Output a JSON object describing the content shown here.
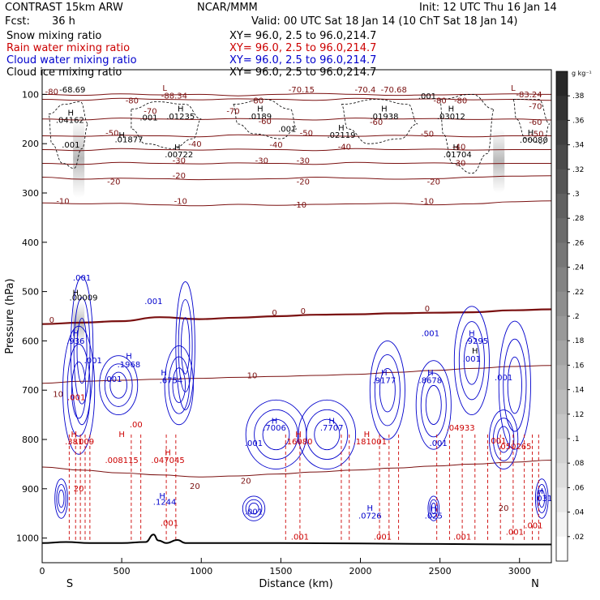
{
  "header": {
    "model": "CONTRAST 15km ARW",
    "org": "NCAR/MMM",
    "init": "Init: 12 UTC Thu 16 Jan 14",
    "fcst_label": "Fcst:",
    "fcst_value": "36 h",
    "valid": "Valid: 00 UTC Sat 18 Jan 14 (10 ChT Sat 18 Jan 14)"
  },
  "legend": [
    {
      "name": "Snow mixing ratio",
      "color": "#000000",
      "xy": "XY=  96.0,  2.5 to  96.0,214.7"
    },
    {
      "name": "Rain water mixing ratio",
      "color": "#cc0000",
      "xy": "XY=  96.0,  2.5 to  96.0,214.7"
    },
    {
      "name": "Cloud water mixing ratio",
      "color": "#0000cc",
      "xy": "XY=  96.0,  2.5 to  96.0,214.7"
    },
    {
      "name": "Cloud ice mixing ratio",
      "color": "#000000",
      "xy": "XY=  96.0,  2.5 to  96.0,214.7"
    }
  ],
  "colorbar": {
    "unit": "g kg⁻¹",
    "labels": [
      ".38",
      ".36",
      ".34",
      ".32",
      ".3",
      ".28",
      ".26",
      ".24",
      ".22",
      ".2",
      ".18",
      ".16",
      ".14",
      ".12",
      ".1",
      ".08",
      ".06",
      ".04",
      ".02"
    ]
  },
  "axis_end_labels": {
    "left": "S",
    "right": "N"
  },
  "colors": {
    "temp": "#7a1010",
    "rain": "#cc0000",
    "cloud": "#0000cc",
    "snow": "#000000",
    "terrain": "#000000"
  },
  "chart_data": {
    "type": "cross-section",
    "xlabel": "Distance (km)",
    "ylabel": "Pressure (hPa)",
    "xlim": [
      0,
      3200
    ],
    "ylim": [
      1050,
      50
    ],
    "xticks": [
      0,
      500,
      1000,
      1500,
      2000,
      2500,
      3000
    ],
    "yticks": [
      100,
      200,
      300,
      400,
      500,
      600,
      700,
      800,
      900,
      1000
    ],
    "temperature_contours": [
      {
        "label": "-80",
        "p": [
          100,
          102,
          99,
          101,
          100,
          103,
          100,
          98,
          100,
          102,
          101,
          100,
          99,
          100
        ]
      },
      {
        "label": "-70",
        "p": [
          110,
          112,
          108,
          110,
          111,
          109,
          110,
          112,
          108,
          110,
          109,
          111,
          110,
          112
        ]
      },
      {
        "label": "-60",
        "p": [
          150,
          152,
          148,
          150,
          151,
          149,
          150,
          152,
          148,
          150,
          149,
          151,
          150,
          152
        ]
      },
      {
        "label": "-50",
        "p": [
          184,
          185,
          183,
          184,
          186,
          182,
          183,
          184,
          185,
          183,
          184,
          186,
          184,
          184
        ]
      },
      {
        "label": "-40",
        "p": [
          212,
          214,
          210,
          212,
          213,
          211,
          212,
          214,
          210,
          212,
          211,
          213,
          212,
          212
        ]
      },
      {
        "label": "-30",
        "p": [
          240,
          242,
          238,
          240,
          241,
          239,
          240,
          242,
          238,
          240,
          239,
          241,
          240,
          240
        ]
      },
      {
        "label": "-20",
        "p": [
          268,
          272,
          270,
          271,
          273,
          272,
          271,
          268,
          270,
          272,
          271,
          268,
          266,
          265
        ]
      },
      {
        "label": "-10",
        "p": [
          320,
          322,
          321,
          324,
          326,
          323,
          325,
          323,
          322,
          321,
          324,
          322,
          318,
          316
        ]
      },
      {
        "label": "0",
        "p": [
          566,
          563,
          560,
          552,
          556,
          553,
          550,
          547,
          546,
          544,
          543,
          542,
          538,
          536
        ]
      },
      {
        "label": "10",
        "p": [
          686,
          682,
          680,
          678,
          676,
          674,
          672,
          670,
          668,
          664,
          660,
          656,
          652,
          650
        ]
      },
      {
        "label": "20",
        "p": [
          856,
          862,
          868,
          872,
          876,
          874,
          870,
          866,
          862,
          858,
          854,
          850,
          846,
          842
        ]
      }
    ],
    "temperature_x": [
      0,
      246,
      492,
      738,
      985,
      1231,
      1477,
      1723,
      1969,
      2215,
      2462,
      2708,
      2954,
      3200
    ],
    "terrain": {
      "x": [
        0,
        150,
        300,
        500,
        650,
        700,
        730,
        780,
        850,
        900,
        1000,
        1500,
        2000,
        2500,
        3000,
        3200
      ],
      "p": [
        1010,
        1008,
        1010,
        1010,
        1008,
        993,
        1005,
        1010,
        1004,
        1010,
        1010,
        1010,
        1011,
        1012,
        1013,
        1013
      ]
    },
    "annotations": [
      {
        "text": "-80",
        "x": 60,
        "p": 100,
        "color": "#7a1010"
      },
      {
        "text": "-68.69",
        "x": 190,
        "p": 96,
        "color": "#000000"
      },
      {
        "text": "L",
        "x": 770,
        "p": 93,
        "color": "#7a1010"
      },
      {
        "text": "-88.34",
        "x": 830,
        "p": 108,
        "color": "#7a1010"
      },
      {
        "text": "-80",
        "x": 565,
        "p": 118,
        "color": "#7a1010"
      },
      {
        "text": "-70.15",
        "x": 1630,
        "p": 96,
        "color": "#7a1010"
      },
      {
        "text": "-70.4",
        "x": 2030,
        "p": 96,
        "color": "#7a1010"
      },
      {
        "text": "-70.68",
        "x": 2210,
        "p": 96,
        "color": "#7a1010"
      },
      {
        "text": "L",
        "x": 2960,
        "p": 93,
        "color": "#7a1010"
      },
      {
        "text": "-83.24",
        "x": 3060,
        "p": 106,
        "color": "#7a1010"
      },
      {
        "text": ".001",
        "x": 2420,
        "p": 109,
        "color": "#000000"
      },
      {
        "text": "-80",
        "x": 2500,
        "p": 118,
        "color": "#7a1010"
      },
      {
        "text": "-80",
        "x": 2630,
        "p": 118,
        "color": "#7a1010"
      },
      {
        "text": "-70",
        "x": 3100,
        "p": 130,
        "color": "#7a1010"
      },
      {
        "text": "-60",
        "x": 3100,
        "p": 162,
        "color": "#7a1010"
      },
      {
        "text": "H",
        "x": 180,
        "p": 143,
        "color": "#000000"
      },
      {
        "text": ".04162",
        "x": 175,
        "p": 158,
        "color": "#000000"
      },
      {
        "text": ".001",
        "x": 670,
        "p": 153,
        "color": "#000000"
      },
      {
        "text": "H",
        "x": 870,
        "p": 135,
        "color": "#000000"
      },
      {
        "text": ".01235",
        "x": 870,
        "p": 150,
        "color": "#000000"
      },
      {
        "text": "H",
        "x": 1370,
        "p": 135,
        "color": "#000000"
      },
      {
        "text": ".0189",
        "x": 1370,
        "p": 150,
        "color": "#000000"
      },
      {
        "text": "H",
        "x": 2150,
        "p": 135,
        "color": "#000000"
      },
      {
        "text": ".01938",
        "x": 2150,
        "p": 150,
        "color": "#000000"
      },
      {
        "text": "H",
        "x": 2570,
        "p": 135,
        "color": "#000000"
      },
      {
        "text": ".03012",
        "x": 2570,
        "p": 150,
        "color": "#000000"
      },
      {
        "text": "-70",
        "x": 680,
        "p": 140,
        "color": "#7a1010"
      },
      {
        "text": "-80",
        "x": 1350,
        "p": 118,
        "color": "#7a1010"
      },
      {
        "text": "-70",
        "x": 1200,
        "p": 140,
        "color": "#7a1010"
      },
      {
        "text": "-60",
        "x": 1400,
        "p": 160,
        "color": "#7a1010"
      },
      {
        "text": "-60",
        "x": 2100,
        "p": 162,
        "color": "#7a1010"
      },
      {
        "text": ".001",
        "x": 1540,
        "p": 176,
        "color": "#000000"
      },
      {
        "text": "-50",
        "x": 1660,
        "p": 184,
        "color": "#7a1010"
      },
      {
        "text": "H",
        "x": 1880,
        "p": 173,
        "color": "#000000"
      },
      {
        "text": ".02119",
        "x": 1880,
        "p": 188,
        "color": "#000000"
      },
      {
        "text": "-50",
        "x": 2420,
        "p": 186,
        "color": "#7a1010"
      },
      {
        "text": "-50",
        "x": 440,
        "p": 184,
        "color": "#7a1010"
      },
      {
        "text": "H",
        "x": 500,
        "p": 188,
        "color": "#000000"
      },
      {
        "text": ".01877",
        "x": 545,
        "p": 197,
        "color": "#000000"
      },
      {
        "text": ".001",
        "x": 180,
        "p": 208,
        "color": "#000000"
      },
      {
        "text": "H",
        "x": 850,
        "p": 213,
        "color": "#000000"
      },
      {
        "text": ".00722",
        "x": 860,
        "p": 228,
        "color": "#000000"
      },
      {
        "text": "-40",
        "x": 960,
        "p": 206,
        "color": "#7a1010"
      },
      {
        "text": "-40",
        "x": 1470,
        "p": 208,
        "color": "#7a1010"
      },
      {
        "text": "-40",
        "x": 1900,
        "p": 212,
        "color": "#7a1010"
      },
      {
        "text": "H",
        "x": 2600,
        "p": 213,
        "color": "#000000"
      },
      {
        "text": ".01704",
        "x": 2610,
        "p": 228,
        "color": "#000000"
      },
      {
        "text": "-40",
        "x": 2620,
        "p": 212,
        "color": "#7a1010"
      },
      {
        "text": "H",
        "x": 3070,
        "p": 183,
        "color": "#000000"
      },
      {
        "text": ".00080",
        "x": 3090,
        "p": 198,
        "color": "#000000"
      },
      {
        "text": "-50",
        "x": 3110,
        "p": 186,
        "color": "#7a1010"
      },
      {
        "text": "-30",
        "x": 860,
        "p": 240,
        "color": "#7a1010"
      },
      {
        "text": "-30",
        "x": 1380,
        "p": 240,
        "color": "#7a1010"
      },
      {
        "text": "-30",
        "x": 1640,
        "p": 240,
        "color": "#7a1010"
      },
      {
        "text": "-30",
        "x": 2620,
        "p": 245,
        "color": "#7a1010"
      },
      {
        "text": "-20",
        "x": 450,
        "p": 283,
        "color": "#7a1010"
      },
      {
        "text": "-20",
        "x": 860,
        "p": 270,
        "color": "#7a1010"
      },
      {
        "text": "-20",
        "x": 1640,
        "p": 283,
        "color": "#7a1010"
      },
      {
        "text": "-20",
        "x": 2460,
        "p": 283,
        "color": "#7a1010"
      },
      {
        "text": "-10",
        "x": 130,
        "p": 322,
        "color": "#7a1010"
      },
      {
        "text": "-10",
        "x": 870,
        "p": 322,
        "color": "#7a1010"
      },
      {
        "text": "-10",
        "x": 1620,
        "p": 330,
        "color": "#7a1010"
      },
      {
        "text": "-10",
        "x": 2420,
        "p": 322,
        "color": "#7a1010"
      },
      {
        "text": "0",
        "x": 60,
        "p": 563,
        "color": "#7a1010"
      },
      {
        "text": "0",
        "x": 1460,
        "p": 548,
        "color": "#7a1010"
      },
      {
        "text": "0",
        "x": 1640,
        "p": 545,
        "color": "#7a1010"
      },
      {
        "text": "0",
        "x": 2420,
        "p": 540,
        "color": "#7a1010"
      },
      {
        "text": "10",
        "x": 1320,
        "p": 676,
        "color": "#7a1010"
      },
      {
        "text": "10",
        "x": 100,
        "p": 714,
        "color": "#7a1010"
      },
      {
        "text": "20",
        "x": 960,
        "p": 900,
        "color": "#7a1010"
      },
      {
        "text": "20",
        "x": 1280,
        "p": 890,
        "color": "#7a1010"
      },
      {
        "text": "20",
        "x": 2900,
        "p": 945,
        "color": "#7a1010"
      },
      {
        "text": ".001",
        "x": 250,
        "p": 478,
        "color": "#0000cc"
      },
      {
        "text": "H",
        "x": 210,
        "p": 508,
        "color": "#000000"
      },
      {
        "text": ".00009",
        "x": 260,
        "p": 518,
        "color": "#000000"
      },
      {
        "text": "H",
        "x": 210,
        "p": 590,
        "color": "#0000cc"
      },
      {
        "text": ".936",
        "x": 210,
        "p": 606,
        "color": "#0000cc"
      },
      {
        "text": ".001",
        "x": 320,
        "p": 645,
        "color": "#0000cc"
      },
      {
        "text": ".001",
        "x": 700,
        "p": 525,
        "color": "#0000cc"
      },
      {
        "text": "H",
        "x": 545,
        "p": 636,
        "color": "#0000cc"
      },
      {
        "text": ".1968",
        "x": 545,
        "p": 654,
        "color": "#0000cc"
      },
      {
        "text": ".001",
        "x": 445,
        "p": 683,
        "color": "#0000cc"
      },
      {
        "text": "H",
        "x": 765,
        "p": 670,
        "color": "#0000cc"
      },
      {
        "text": ".6754",
        "x": 810,
        "p": 686,
        "color": "#0000cc"
      },
      {
        "text": "H",
        "x": 1460,
        "p": 768,
        "color": "#0000cc"
      },
      {
        "text": ".7006",
        "x": 1460,
        "p": 782,
        "color": "#0000cc"
      },
      {
        "text": "H",
        "x": 1820,
        "p": 768,
        "color": "#0000cc"
      },
      {
        "text": ".7707",
        "x": 1820,
        "p": 782,
        "color": "#0000cc"
      },
      {
        "text": ".001",
        "x": 1330,
        "p": 813,
        "color": "#0000cc"
      },
      {
        "text": "H",
        "x": 2150,
        "p": 670,
        "color": "#0000cc"
      },
      {
        "text": ".9177",
        "x": 2150,
        "p": 686,
        "color": "#0000cc"
      },
      {
        "text": "H",
        "x": 2440,
        "p": 670,
        "color": "#0000cc"
      },
      {
        "text": ".8678",
        "x": 2440,
        "p": 686,
        "color": "#0000cc"
      },
      {
        "text": "H",
        "x": 2700,
        "p": 590,
        "color": "#0000cc"
      },
      {
        "text": ".9295",
        "x": 2730,
        "p": 606,
        "color": "#0000cc"
      },
      {
        "text": ".001",
        "x": 2440,
        "p": 590,
        "color": "#0000cc"
      },
      {
        "text": "H",
        "x": 2720,
        "p": 626,
        "color": "#000000"
      },
      {
        "text": ".001",
        "x": 2700,
        "p": 642,
        "color": "#0000cc"
      },
      {
        "text": ".001",
        "x": 2900,
        "p": 680,
        "color": "#0000cc"
      },
      {
        "text": ".001",
        "x": 2490,
        "p": 813,
        "color": "#0000cc"
      },
      {
        "text": "H",
        "x": 755,
        "p": 920,
        "color": "#0000cc"
      },
      {
        "text": ".1244",
        "x": 770,
        "p": 932,
        "color": "#0000cc"
      },
      {
        "text": ".001",
        "x": 1330,
        "p": 952,
        "color": "#0000cc"
      },
      {
        "text": "H",
        "x": 2060,
        "p": 945,
        "color": "#0000cc"
      },
      {
        "text": ".0726",
        "x": 2060,
        "p": 960,
        "color": "#0000cc"
      },
      {
        "text": "H",
        "x": 2460,
        "p": 945,
        "color": "#0000cc"
      },
      {
        "text": ".025",
        "x": 2460,
        "p": 960,
        "color": "#0000cc"
      },
      {
        "text": "H",
        "x": 3130,
        "p": 910,
        "color": "#0000cc"
      },
      {
        "text": ".031",
        "x": 3150,
        "p": 925,
        "color": "#0000cc"
      },
      {
        "text": "H",
        "x": 200,
        "p": 795,
        "color": "#cc0000"
      },
      {
        "text": ".381",
        "x": 200,
        "p": 810,
        "color": "#cc0000"
      },
      {
        "text": ".009",
        "x": 270,
        "p": 810,
        "color": "#cc0000"
      },
      {
        "text": ".001",
        "x": 215,
        "p": 720,
        "color": "#cc0000"
      },
      {
        "text": "H",
        "x": 500,
        "p": 795,
        "color": "#cc0000"
      },
      {
        "text": ".008115",
        "x": 500,
        "p": 848,
        "color": "#cc0000"
      },
      {
        "text": ".00",
        "x": 590,
        "p": 775,
        "color": "#cc0000"
      },
      {
        "text": "H",
        "x": 790,
        "p": 832,
        "color": "#cc0000"
      },
      {
        "text": ".047045",
        "x": 790,
        "p": 848,
        "color": "#cc0000"
      },
      {
        "text": "H",
        "x": 1610,
        "p": 795,
        "color": "#cc0000"
      },
      {
        "text": ".16080",
        "x": 1610,
        "p": 810,
        "color": "#cc0000"
      },
      {
        "text": "H",
        "x": 2040,
        "p": 795,
        "color": "#cc0000"
      },
      {
        "text": ".181001",
        "x": 2060,
        "p": 810,
        "color": "#cc0000"
      },
      {
        "text": ".04933",
        "x": 2630,
        "p": 782,
        "color": "#cc0000"
      },
      {
        "text": ".001",
        "x": 2860,
        "p": 808,
        "color": "#cc0000"
      },
      {
        "text": ".050265",
        "x": 2970,
        "p": 820,
        "color": "#cc0000"
      },
      {
        "text": ".001",
        "x": 1620,
        "p": 1003,
        "color": "#cc0000"
      },
      {
        "text": ".001",
        "x": 2140,
        "p": 1003,
        "color": "#cc0000"
      },
      {
        "text": ".001",
        "x": 2640,
        "p": 1003,
        "color": "#cc0000"
      },
      {
        "text": ".001",
        "x": 2970,
        "p": 993,
        "color": "#cc0000"
      },
      {
        "text": ".001",
        "x": 3090,
        "p": 980,
        "color": "#cc0000"
      },
      {
        "text": ".001",
        "x": 800,
        "p": 975,
        "color": "#cc0000"
      },
      {
        "text": "20",
        "x": 230,
        "p": 905,
        "color": "#cc0000"
      }
    ]
  }
}
